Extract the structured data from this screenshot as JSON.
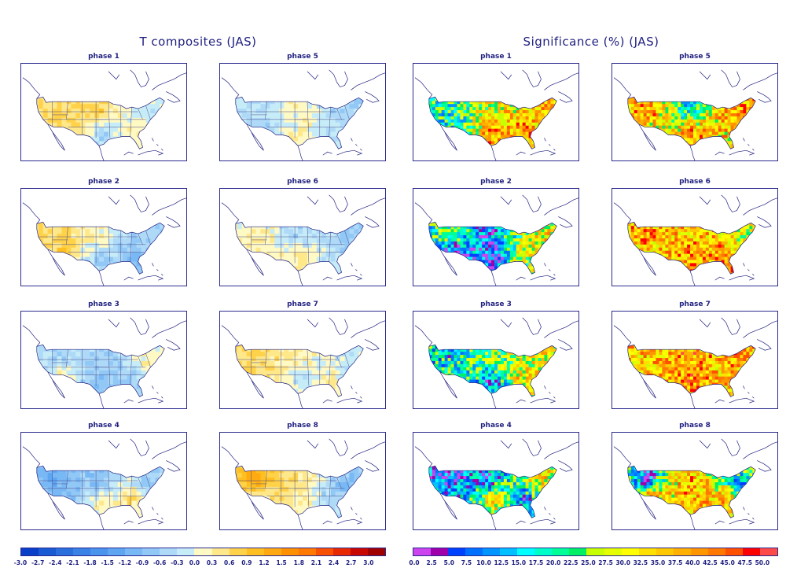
{
  "figure": {
    "left_title": "T composites (JAS)",
    "right_title": "Significance (%) (JAS)"
  },
  "t_panels": [
    {
      "title": "phase 1",
      "field": "t1"
    },
    {
      "title": "phase 5",
      "field": "t5"
    },
    {
      "title": "phase 2",
      "field": "t2"
    },
    {
      "title": "phase 6",
      "field": "t6"
    },
    {
      "title": "phase 3",
      "field": "t3"
    },
    {
      "title": "phase 7",
      "field": "t7"
    },
    {
      "title": "phase 4",
      "field": "t4"
    },
    {
      "title": "phase 8",
      "field": "t8"
    }
  ],
  "sig_panels": [
    {
      "title": "phase 1",
      "field": "s1"
    },
    {
      "title": "phase 5",
      "field": "s5"
    },
    {
      "title": "phase 2",
      "field": "s2"
    },
    {
      "title": "phase 6",
      "field": "s6"
    },
    {
      "title": "phase 3",
      "field": "s3"
    },
    {
      "title": "phase 7",
      "field": "s7"
    },
    {
      "title": "phase 4",
      "field": "s4"
    },
    {
      "title": "phase 8",
      "field": "s8"
    }
  ],
  "t_colorbar": {
    "labels": [
      "-3.0",
      "-2.7",
      "-2.4",
      "-2.1",
      "-1.8",
      "-1.5",
      "-1.2",
      "-0.9",
      "-0.6",
      "-0.3",
      "0.0",
      "0.3",
      "0.6",
      "0.9",
      "1.2",
      "1.5",
      "1.8",
      "2.1",
      "2.4",
      "2.7",
      "3.0"
    ],
    "colors": [
      "#0a3fc8",
      "#1a5ad2",
      "#2a6fdb",
      "#3a82e6",
      "#4a94ee",
      "#5ea6f2",
      "#78b8f4",
      "#92c8f6",
      "#aedaf8",
      "#c6ecf8",
      "#fff9c4",
      "#ffe88a",
      "#ffd24a",
      "#ffbf20",
      "#ffaa10",
      "#ff9000",
      "#ff7800",
      "#f85000",
      "#e82800",
      "#c80800",
      "#a00000"
    ]
  },
  "sig_colorbar": {
    "labels": [
      "0.0",
      "2.5",
      "5.0",
      "7.5",
      "10.0",
      "12.5",
      "15.0",
      "17.5",
      "20.0",
      "22.5",
      "25.0",
      "27.5",
      "30.0",
      "32.5",
      "35.0",
      "37.5",
      "40.0",
      "42.5",
      "45.0",
      "47.5",
      "50.0"
    ],
    "colors": [
      "#cc44ee",
      "#a000aa",
      "#0040ff",
      "#0070ff",
      "#0095ff",
      "#00c0ff",
      "#00ffff",
      "#00ffc8",
      "#00ff96",
      "#00f064",
      "#c8ff00",
      "#e6ff00",
      "#ffff00",
      "#ffe000",
      "#ffc800",
      "#ffb000",
      "#ff9600",
      "#ff7800",
      "#ff5000",
      "#ff0000",
      "#ff4a4a"
    ]
  },
  "chart_data": {
    "type": "heatmap",
    "title": "T composites (JAS) / Significance (%) (JAS)",
    "panels_left": [
      "phase 1",
      "phase 2",
      "phase 3",
      "phase 4",
      "phase 5",
      "phase 6",
      "phase 7",
      "phase 8"
    ],
    "panels_right": [
      "phase 1",
      "phase 2",
      "phase 3",
      "phase 4",
      "phase 5",
      "phase 6",
      "phase 7",
      "phase 8"
    ],
    "t_range": [
      -3.0,
      3.0
    ],
    "sig_range": [
      0.0,
      50.0
    ],
    "region": "Continental United States",
    "t_fields": {
      "t1": {
        "NW": 0.6,
        "N": 0.9,
        "NE": -0.3,
        "SW": 0.6,
        "S": -0.6,
        "SE": 0.3
      },
      "t2": {
        "NW": 0.6,
        "N": 0.3,
        "NE": -0.6,
        "SW": 0.9,
        "S": -0.6,
        "SE": -0.9
      },
      "t3": {
        "NW": -0.6,
        "N": -0.6,
        "NE": 0.3,
        "SW": 0.3,
        "S": -0.9,
        "SE": -0.6
      },
      "t4": {
        "NW": -1.2,
        "N": -0.9,
        "NE": -0.6,
        "SW": -0.9,
        "S": 0.3,
        "SE": 0.6
      },
      "t5": {
        "NW": -0.3,
        "N": 0.3,
        "NE": -0.6,
        "SW": -0.6,
        "S": 0.3,
        "SE": -0.3
      },
      "t6": {
        "NW": 0.3,
        "N": -0.6,
        "NE": -0.6,
        "SW": 0.3,
        "S": 0.6,
        "SE": -0.3
      },
      "t7": {
        "NW": 0.6,
        "N": 0.3,
        "NE": -0.3,
        "SW": 0.6,
        "S": -0.3,
        "SE": 0.3
      },
      "t8": {
        "NW": 1.5,
        "N": 0.6,
        "NE": -0.9,
        "SW": 0.3,
        "S": 0.3,
        "SE": -0.6
      }
    },
    "sig_fields": {
      "s1": {
        "NW": 20,
        "N": 30,
        "NE": 35,
        "SW": 15,
        "S": 40,
        "SE": 40
      },
      "s2": {
        "NW": 30,
        "N": 10,
        "NE": 35,
        "SW": 2,
        "S": 2,
        "SE": 30
      },
      "s3": {
        "NW": 15,
        "N": 25,
        "NE": 30,
        "SW": 20,
        "S": 10,
        "SE": 35
      },
      "s4": {
        "NW": 5,
        "N": 10,
        "NE": 35,
        "SW": 15,
        "S": 35,
        "SE": 10
      },
      "s5": {
        "NW": 40,
        "N": 15,
        "NE": 40,
        "SW": 35,
        "S": 40,
        "SE": 35
      },
      "s6": {
        "NW": 40,
        "N": 35,
        "NE": 30,
        "SW": 35,
        "S": 40,
        "SE": 40
      },
      "s7": {
        "NW": 35,
        "N": 40,
        "NE": 40,
        "SW": 40,
        "S": 40,
        "SE": 35
      },
      "s8": {
        "NW": 2,
        "N": 40,
        "NE": 15,
        "SW": 40,
        "S": 40,
        "SE": 35
      }
    }
  }
}
